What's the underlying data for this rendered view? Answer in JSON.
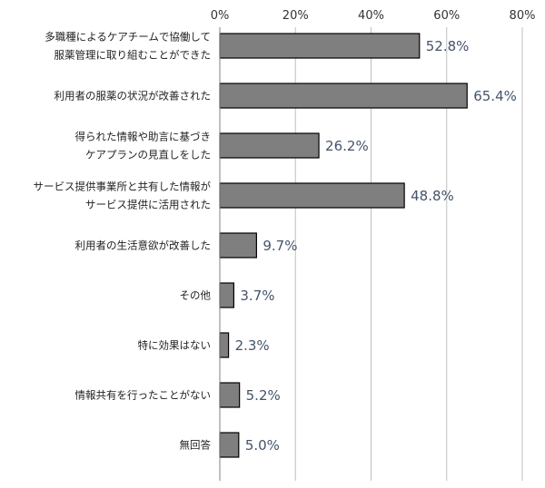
{
  "chart_data": {
    "type": "bar",
    "orientation": "horizontal",
    "categories": [
      [
        "多職種によるケアチームで協働して",
        "服薬管理に取り組むことができた"
      ],
      [
        "利用者の服薬の状況が改善された"
      ],
      [
        "得られた情報や助言に基づき",
        "ケアプランの見直しをした"
      ],
      [
        "サービス提供事業所と共有した情報が",
        "サービス提供に活用された"
      ],
      [
        "利用者の生活意欲が改善した"
      ],
      [
        "その他"
      ],
      [
        "特に効果はない"
      ],
      [
        "情報共有を行ったことがない"
      ],
      [
        "無回答"
      ]
    ],
    "values": [
      52.8,
      65.4,
      26.2,
      48.8,
      9.7,
      3.7,
      2.3,
      5.2,
      5.0
    ],
    "value_labels": [
      "52.8%",
      "65.4%",
      "26.2%",
      "48.8%",
      "9.7%",
      "3.7%",
      "2.3%",
      "5.2%",
      "5.0%"
    ],
    "x_ticks": [
      "0%",
      "20%",
      "40%",
      "60%",
      "80%"
    ],
    "x_tick_values": [
      0,
      20,
      40,
      60,
      80
    ],
    "xlim": [
      0,
      80
    ],
    "x_axis_position": "top",
    "grid": true,
    "colors": {
      "bar": "#7f7f7f",
      "bar_border": "#000000",
      "data_label": "#44546a",
      "grid": "#bfbfbf"
    }
  }
}
